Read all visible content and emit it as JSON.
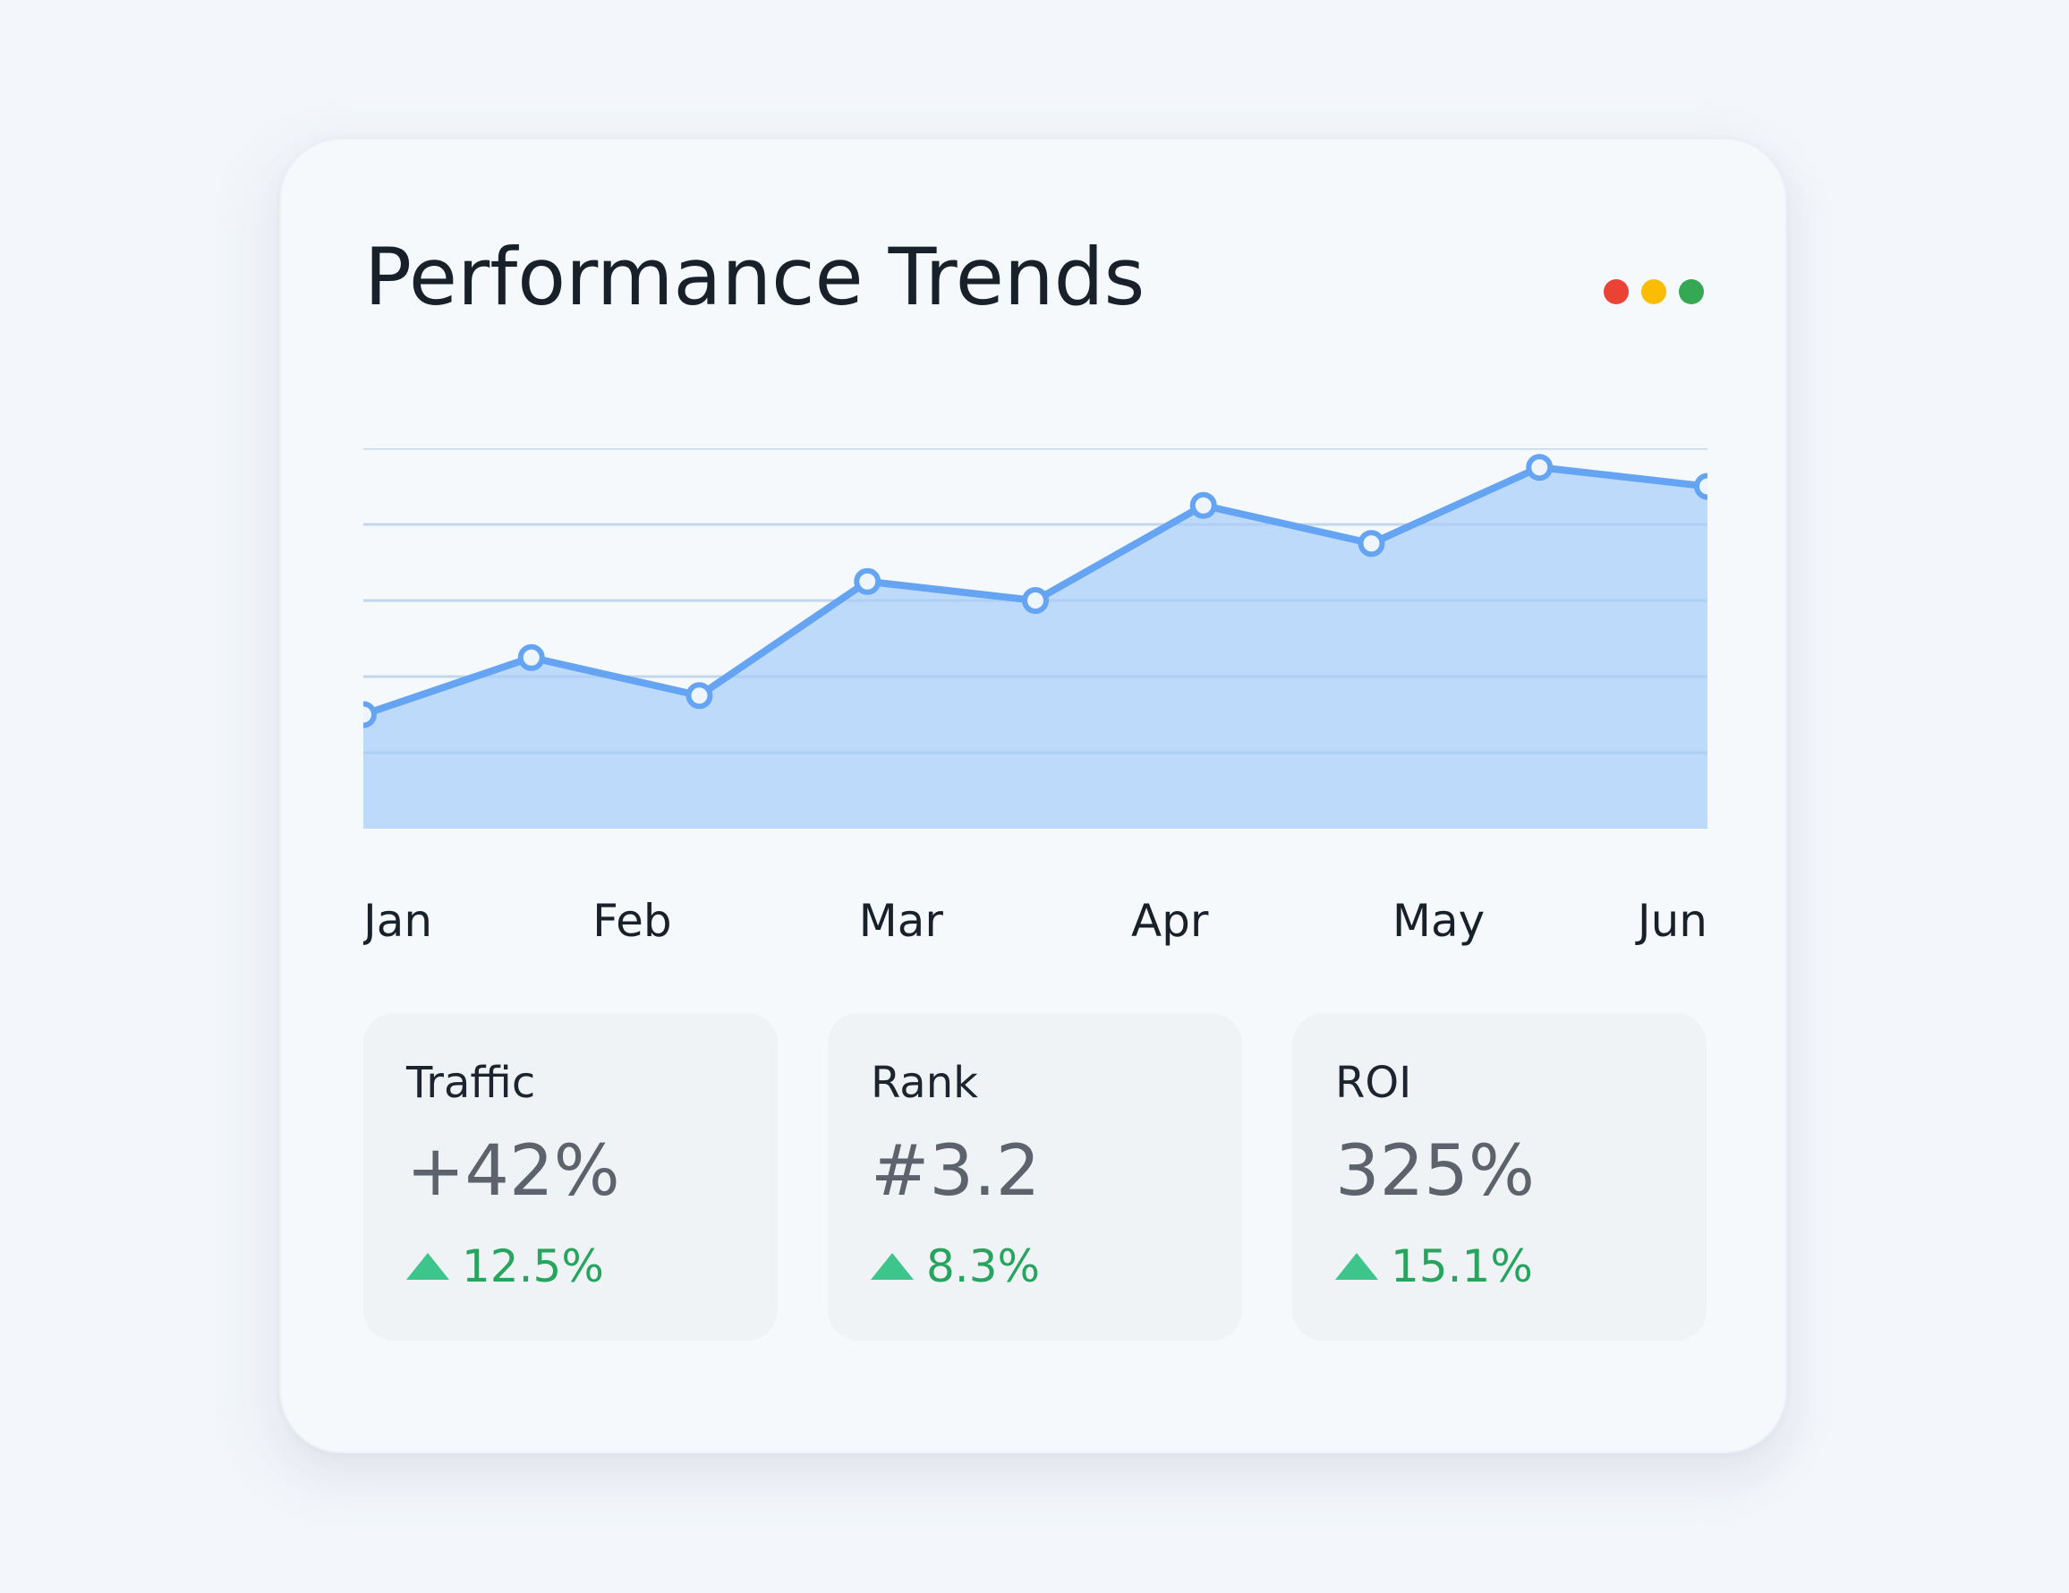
{
  "header": {
    "title": "Performance Trends"
  },
  "window_dots": [
    {
      "name": "red-dot",
      "color": "#ea4335"
    },
    {
      "name": "yellow-dot",
      "color": "#fbbc05"
    },
    {
      "name": "green-dot",
      "color": "#34a853"
    }
  ],
  "chart_data": {
    "type": "area",
    "categories": [
      "Jan",
      "Feb",
      "Mar",
      "Apr",
      "May",
      "Jun"
    ],
    "points": [
      {
        "x": 0.0,
        "y": 1.5
      },
      {
        "x": 0.5,
        "y": 2.25
      },
      {
        "x": 1.0,
        "y": 1.75
      },
      {
        "x": 1.5,
        "y": 3.25
      },
      {
        "x": 2.0,
        "y": 3.0
      },
      {
        "x": 2.5,
        "y": 4.25
      },
      {
        "x": 3.0,
        "y": 3.75
      },
      {
        "x": 3.5,
        "y": 4.75
      },
      {
        "x": 4.0,
        "y": 4.5
      }
    ],
    "xlim": [
      0,
      4
    ],
    "ylim": [
      0,
      5
    ],
    "grid": true,
    "line_color": "#64a4f3",
    "fill_color": "#bbd8fb",
    "grid_color": "#dfe5ec"
  },
  "stats": [
    {
      "label": "Traffic",
      "value": "+42%",
      "change": "12.5%"
    },
    {
      "label": "Rank",
      "value": "#3.2",
      "change": "8.3%"
    },
    {
      "label": "ROI",
      "value": "325%",
      "change": "15.1%"
    }
  ]
}
